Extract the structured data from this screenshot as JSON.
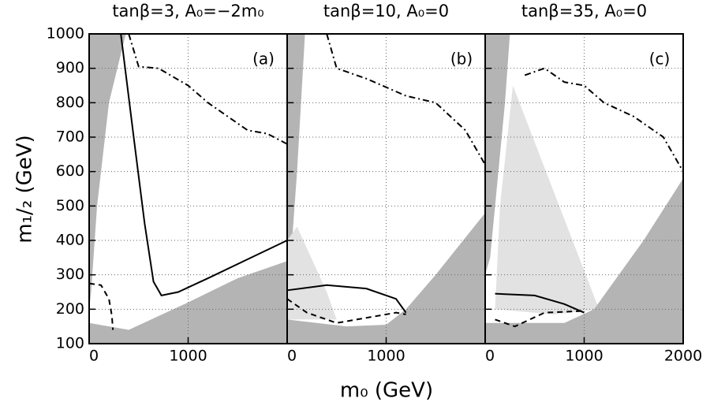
{
  "y_label": "m₁/₂ (GeV)",
  "x_label": "m₀ (GeV)",
  "chart_data": [
    {
      "type": "line",
      "title": "tanβ=3, A₀=−2m₀",
      "panel_label": "(a)",
      "xlim": [
        0,
        2000
      ],
      "xticks": [
        0,
        1000
      ],
      "ylim": [
        100,
        1000
      ],
      "yticks": [
        100,
        200,
        300,
        400,
        500,
        600,
        700,
        800,
        900,
        1000
      ],
      "grid": true,
      "series": [
        {
          "fill": true,
          "color": "#b4b4b4",
          "x": [
            0,
            370,
            200,
            80,
            20,
            0
          ],
          "values": [
            1000,
            1000,
            800,
            500,
            250,
            200
          ]
        },
        {
          "fill": true,
          "color": "#b4b4b4",
          "x": [
            0,
            0,
            200,
            400,
            1000,
            1500,
            2000,
            2000
          ],
          "values": [
            100,
            160,
            150,
            140,
            220,
            290,
            340,
            100
          ]
        },
        {
          "dash": "solid",
          "color": "#000000",
          "x": [
            320,
            450,
            560,
            650,
            730,
            900,
            1200,
            1600,
            2000
          ],
          "values": [
            1000,
            700,
            450,
            280,
            240,
            250,
            290,
            345,
            400
          ]
        },
        {
          "dash": "dash-dot",
          "color": "#000000",
          "x": [
            400,
            500,
            700,
            1000,
            1200,
            1400,
            1600,
            1800,
            2000
          ],
          "values": [
            1000,
            905,
            900,
            850,
            800,
            760,
            720,
            710,
            680
          ]
        },
        {
          "dash": "dashed",
          "color": "#000000",
          "x": [
            0,
            120,
            200,
            230,
            240
          ],
          "values": [
            275,
            270,
            230,
            180,
            140
          ]
        }
      ]
    },
    {
      "type": "line",
      "title": "tanβ=10, A₀=0",
      "panel_label": "(b)",
      "xlim": [
        0,
        2000
      ],
      "xticks": [
        0,
        1000
      ],
      "ylim": [
        100,
        1000
      ],
      "yticks": [
        100,
        200,
        300,
        400,
        500,
        600,
        700,
        800,
        900,
        1000
      ],
      "grid": true,
      "series": [
        {
          "fill": true,
          "color": "#b4b4b4",
          "x": [
            0,
            180,
            100,
            50,
            0
          ],
          "values": [
            1000,
            1000,
            600,
            400,
            380
          ]
        },
        {
          "fill": true,
          "color": "#b4b4b4",
          "x": [
            0,
            0,
            600,
            1000,
            1200,
            1500,
            2000,
            2000
          ],
          "values": [
            100,
            170,
            150,
            155,
            200,
            300,
            480,
            100
          ]
        },
        {
          "fill": true,
          "color": "#e2e2e2",
          "x": [
            0,
            100,
            400,
            500,
            0
          ],
          "values": [
            400,
            440,
            250,
            170,
            170
          ]
        },
        {
          "dash": "dash-dot",
          "color": "#000000",
          "x": [
            400,
            500,
            800,
            1200,
            1500,
            1800,
            2000
          ],
          "values": [
            1000,
            900,
            870,
            820,
            800,
            720,
            620
          ]
        },
        {
          "dash": "solid",
          "color": "#000000",
          "x": [
            0,
            400,
            800,
            1100,
            1200
          ],
          "values": [
            255,
            270,
            260,
            230,
            190
          ]
        },
        {
          "dash": "dashed",
          "color": "#000000",
          "x": [
            0,
            200,
            500,
            800,
            1100,
            1200
          ],
          "values": [
            230,
            190,
            160,
            175,
            190,
            185
          ]
        }
      ]
    },
    {
      "type": "line",
      "title": "tanβ=35, A₀=0",
      "panel_label": "(c)",
      "xlim": [
        0,
        2000
      ],
      "xticks": [
        0,
        1000,
        2000
      ],
      "ylim": [
        100,
        1000
      ],
      "yticks": [
        100,
        200,
        300,
        400,
        500,
        600,
        700,
        800,
        900,
        1000
      ],
      "grid": true,
      "series": [
        {
          "fill": true,
          "color": "#b4b4b4",
          "x": [
            0,
            250,
            200,
            100,
            50,
            0
          ],
          "values": [
            1000,
            1000,
            800,
            500,
            350,
            300
          ]
        },
        {
          "fill": true,
          "color": "#e2e2e2",
          "x": [
            280,
            1150,
            700,
            100,
            150
          ],
          "values": [
            850,
            200,
            185,
            200,
            500
          ]
        },
        {
          "fill": true,
          "color": "#b4b4b4",
          "x": [
            0,
            0,
            800,
            1100,
            1600,
            2000,
            2000
          ],
          "values": [
            100,
            160,
            160,
            200,
            400,
            580,
            100
          ]
        },
        {
          "dash": "dash-dot",
          "color": "#000000",
          "x": [
            400,
            600,
            800,
            1000,
            1200,
            1500,
            1800,
            2000
          ],
          "values": [
            880,
            900,
            860,
            850,
            800,
            760,
            700,
            600
          ]
        },
        {
          "dash": "solid",
          "color": "#000000",
          "x": [
            100,
            500,
            800,
            1000
          ],
          "values": [
            245,
            240,
            215,
            190
          ]
        },
        {
          "dash": "dashed",
          "color": "#000000",
          "x": [
            100,
            300,
            600,
            1000
          ],
          "values": [
            170,
            150,
            190,
            195
          ]
        }
      ]
    }
  ]
}
